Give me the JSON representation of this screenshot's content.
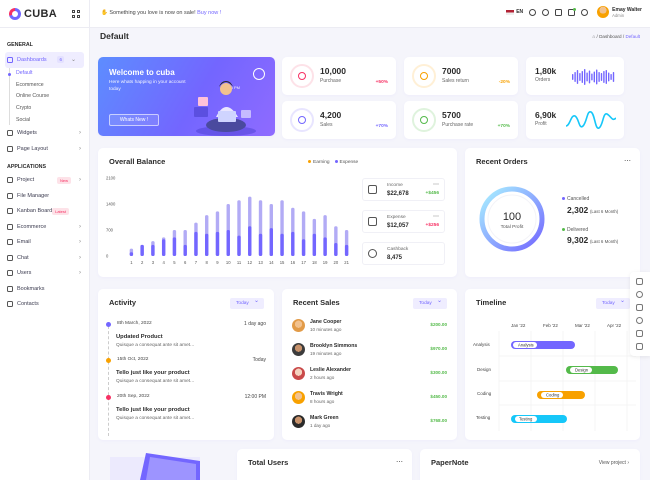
{
  "app": {
    "logo_text": "CUBA"
  },
  "sidebar": {
    "sections": {
      "general": "GENERAL",
      "applications": "APPLICATIONS"
    },
    "dashboards": {
      "label": "Dashboards",
      "count": "6"
    },
    "subitems": [
      "Default",
      "Ecommerce",
      "Online Course",
      "Crypto",
      "Social"
    ],
    "general_items": [
      "Widgets",
      "Page Layout"
    ],
    "app_items": [
      "Project",
      "File Manager",
      "Kanban Board",
      "Ecommerce",
      "Email",
      "Chat",
      "Users",
      "Bookmarks",
      "Contacts"
    ],
    "badges": {
      "project": "New",
      "kanban": "Latest"
    }
  },
  "topbar": {
    "notice_text": "Something you love is now on sale!",
    "notice_link": "Buy now !",
    "lang": "EN",
    "user_name": "Emay Walter",
    "user_role": "Admin"
  },
  "page": {
    "title": "Default",
    "crumb_sep": "/",
    "crumb_1": "Dashboard",
    "crumb_2": "Default"
  },
  "welcome": {
    "title": "Welcome to cuba",
    "desc": "Here whats happing in your account today",
    "button": "Whats New !",
    "time": "4:23 PM"
  },
  "stats": [
    {
      "value": "10,000",
      "label": "Purchase",
      "change": "+50%",
      "color": "#f73164"
    },
    {
      "value": "7000",
      "label": "Sales return",
      "change": "-20%",
      "color": "#f8a100"
    },
    {
      "value": "4,200",
      "label": "Sales",
      "change": "+70%",
      "color": "#7366ff"
    },
    {
      "value": "5700",
      "label": "Purchase rate",
      "change": "+70%",
      "color": "#54ba4a"
    }
  ],
  "mini": [
    {
      "value": "1,80k",
      "label": "Orders",
      "color": "#7366ff"
    },
    {
      "value": "6,90k",
      "label": "Profit",
      "color": "#16c7f9"
    }
  ],
  "balance": {
    "title": "Overall Balance",
    "legend": [
      "Earning",
      "Expense"
    ],
    "income": {
      "label": "Income",
      "value": "$22,678",
      "change": "+$456"
    },
    "expense": {
      "label": "Expense",
      "value": "$12,057",
      "change": "+$256"
    },
    "cashback": {
      "label": "Cashback",
      "value": "8,475"
    }
  },
  "chart_data": {
    "type": "bar",
    "categories": [
      "1",
      "2",
      "3",
      "4",
      "5",
      "6",
      "7",
      "8",
      "9",
      "10",
      "11",
      "12",
      "13",
      "14",
      "15",
      "16",
      "17",
      "18",
      "19",
      "20",
      "21"
    ],
    "series": [
      {
        "name": "Earning",
        "values": [
          200,
          300,
          400,
          500,
          700,
          700,
          900,
          1100,
          1200,
          1400,
          1500,
          1600,
          1500,
          1400,
          1500,
          1300,
          1200,
          1000,
          1100,
          800,
          700
        ]
      },
      {
        "name": "Expense",
        "values": [
          100,
          300,
          300,
          450,
          500,
          300,
          650,
          600,
          650,
          700,
          550,
          800,
          600,
          750,
          600,
          650,
          450,
          600,
          500,
          350,
          300
        ]
      }
    ],
    "ylim": [
      0,
      2100
    ],
    "yticks": [
      "2100",
      "1400",
      "700",
      "0"
    ],
    "xlabel": "",
    "ylabel": "",
    "colors": {
      "earning": "#b2abf5",
      "expense": "#7366ff"
    }
  },
  "orders": {
    "total": "100",
    "total_label": "Total Profit",
    "cancelled_label": "Cancelled",
    "cancelled_value": "2,302",
    "cancelled_period": "(Last 6 Month)",
    "delivered_label": "Delivered",
    "delivered_value": "9,302",
    "delivered_period": "(Last 6 Month)",
    "title": "Recent Orders"
  },
  "activity": {
    "title": "Activity",
    "filter": "Today",
    "items": [
      {
        "date": "8th March, 2022",
        "time": "1 day ago",
        "title": "Updated Product",
        "desc": "Quisque a consequat ante sit amet...",
        "color": "#7366ff"
      },
      {
        "date": "15th Oct, 2022",
        "time": "Today",
        "title": "Tello just like your product",
        "desc": "Quisque a consequat ante sit amet...",
        "color": "#f8a100"
      },
      {
        "date": "20th Sep, 2022",
        "time": "12:00 PM",
        "title": "Tello just like your product",
        "desc": "Quisque a consequat ante sit amet...",
        "color": "#f73164"
      }
    ]
  },
  "sales": {
    "title": "Recent Sales",
    "filter": "Today",
    "items": [
      {
        "name": "Jane Cooper",
        "time": "10 minutes ago",
        "value": "$200.00"
      },
      {
        "name": "Brooklyn Simmons",
        "time": "19 minutes ago",
        "value": "$970.00"
      },
      {
        "name": "Leslie Alexander",
        "time": "2 hours ago",
        "value": "$300.00"
      },
      {
        "name": "Travis Wright",
        "time": "8 hours ago",
        "value": "$450.00"
      },
      {
        "name": "Mark Green",
        "time": "1 day ago",
        "value": "$768.00"
      }
    ]
  },
  "timeline": {
    "title": "Timeline",
    "filter": "Today",
    "months": [
      "Jan '22",
      "Feb '22",
      "Mar '22",
      "Apr '22"
    ],
    "rows": [
      {
        "name": "Analysis",
        "label": "Analysis",
        "color": "#7366ff"
      },
      {
        "name": "Design",
        "label": "Design",
        "color": "#54ba4a"
      },
      {
        "name": "Coding",
        "label": "Coding",
        "color": "#f8a100"
      },
      {
        "name": "Testing",
        "label": "Testing",
        "color": "#16c7f9"
      }
    ]
  },
  "bottom": {
    "users_title": "Total Users",
    "paper_title": "PaperNote",
    "view_project": "View project"
  }
}
